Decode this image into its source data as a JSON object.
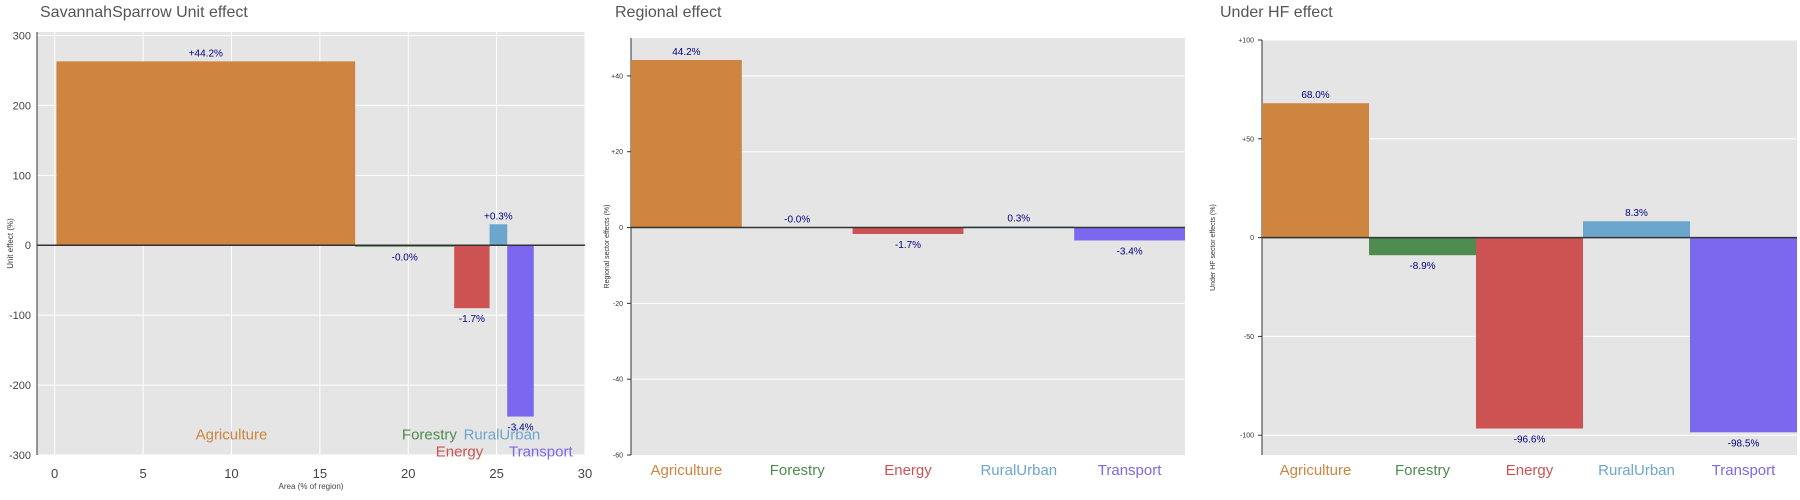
{
  "chart_data": [
    {
      "type": "bar",
      "title": "SavannahSparrow Unit effect",
      "xlabel": "Area (% of region)",
      "ylabel": "Unit effect (%)",
      "xlim": [
        -1,
        30
      ],
      "ylim": [
        -300,
        305
      ],
      "xticks": [
        0,
        5,
        10,
        15,
        20,
        25,
        30
      ],
      "yticks": [
        -300,
        -200,
        -100,
        0,
        100,
        200,
        300
      ],
      "ytick_labels": [
        "-300",
        "-200",
        "-100",
        "0",
        "100",
        "200",
        "300"
      ],
      "categories": [
        "Agriculture",
        "Forestry",
        "Energy",
        "RuralUrban",
        "Transport"
      ],
      "x_start": [
        0.1,
        17.0,
        22.6,
        24.6,
        25.6
      ],
      "width": [
        16.9,
        5.6,
        2.0,
        1.0,
        1.5
      ],
      "values": [
        263,
        -2,
        -90,
        30,
        -245
      ],
      "data_labels": [
        "+44.2%",
        "-0.0%",
        "-1.7%",
        "+0.3%",
        "-3.4%"
      ],
      "category_label_x": [
        10,
        21.2,
        22.9,
        25.3,
        27.5
      ],
      "category_label_y": [
        -278,
        -278,
        -302,
        -278,
        -302
      ],
      "colors": [
        "#CD853F",
        "#4E8B4E",
        "#CD5353",
        "#6CA6CD",
        "#7B68EE"
      ]
    },
    {
      "type": "bar",
      "title": "Regional effect",
      "ylabel": "Regional sector effects (%)",
      "ylim": [
        -60,
        50
      ],
      "yticks": [
        -60,
        -40,
        -20,
        0,
        20,
        40
      ],
      "ytick_labels": [
        "-60",
        "-40",
        "-20",
        "0",
        "+20",
        "+40"
      ],
      "categories": [
        "Agriculture",
        "Forestry",
        "Energy",
        "RuralUrban",
        "Transport"
      ],
      "values": [
        44.2,
        0.0,
        -1.7,
        0.3,
        -3.4
      ],
      "data_labels": [
        "44.2%",
        "-0.0%",
        "-1.7%",
        "0.3%",
        "-3.4%"
      ],
      "colors": [
        "#CD853F",
        "#4E8B4E",
        "#CD5353",
        "#6CA6CD",
        "#7B68EE"
      ]
    },
    {
      "type": "bar",
      "title": "Under HF effect",
      "ylabel": "Under HF sector effects (%)",
      "ylim": [
        -110,
        100
      ],
      "yticks": [
        -100,
        -50,
        0,
        50,
        100
      ],
      "ytick_labels": [
        "-100",
        "-50",
        "0",
        "+50",
        "+100"
      ],
      "categories": [
        "Agriculture",
        "Forestry",
        "Energy",
        "RuralUrban",
        "Transport"
      ],
      "values": [
        68.0,
        -8.9,
        -96.6,
        8.3,
        -98.5
      ],
      "data_labels": [
        "68.0%",
        "-8.9%",
        "-96.6%",
        "8.3%",
        "-98.5%"
      ],
      "colors": [
        "#CD853F",
        "#4E8B4E",
        "#CD5353",
        "#6CA6CD",
        "#7B68EE"
      ]
    }
  ]
}
